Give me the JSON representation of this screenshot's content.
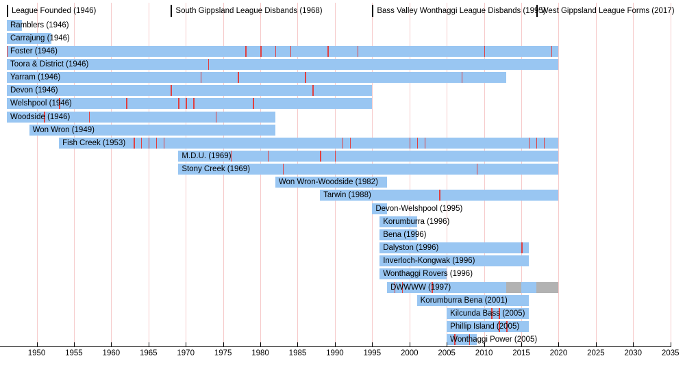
{
  "chart_data": {
    "type": "timeline",
    "unit": "year",
    "axis": {
      "min_year": 1946,
      "max_year": 2035,
      "tick_interval": 5,
      "tick_years": [
        1950,
        1955,
        1960,
        1965,
        1970,
        1975,
        1980,
        1985,
        1990,
        1995,
        2000,
        2005,
        2010,
        2015,
        2020,
        2025,
        2030,
        2035
      ]
    },
    "milestones": [
      {
        "label": "League Founded (1946)",
        "year": 1946
      },
      {
        "label": "South Gippsland League Disbands (1968)",
        "year": 1968
      },
      {
        "label": "Bass Valley Wonthaggi League Disbands (1995)",
        "year": 1995
      },
      {
        "label": "West Gippsland League Forms (2017)",
        "year": 2017
      }
    ],
    "clubs": [
      {
        "label": "Ramblers (1946)",
        "segments": [
          {
            "from": 1946,
            "to": 1948,
            "state": "active"
          }
        ],
        "premierships": []
      },
      {
        "label": "Carrajung (1946)",
        "segments": [
          {
            "from": 1946,
            "to": 1952,
            "state": "active"
          }
        ],
        "premierships": []
      },
      {
        "label": "Foster (1946)",
        "segments": [
          {
            "from": 1946,
            "to": 2020,
            "state": "active"
          }
        ],
        "premierships": [
          1946,
          1978,
          1980,
          1982,
          1984,
          1989,
          1993,
          2010,
          2019
        ]
      },
      {
        "label": "Toora & District (1946)",
        "segments": [
          {
            "from": 1946,
            "to": 2020,
            "state": "active"
          }
        ],
        "premierships": [
          1973
        ]
      },
      {
        "label": "Yarram (1946)",
        "segments": [
          {
            "from": 1946,
            "to": 2013,
            "state": "active"
          }
        ],
        "premierships": [
          1972,
          1977,
          1986,
          2007
        ]
      },
      {
        "label": "Devon (1946)",
        "segments": [
          {
            "from": 1946,
            "to": 1995,
            "state": "active"
          }
        ],
        "premierships": [
          1968,
          1987
        ]
      },
      {
        "label": "Welshpool (1946)",
        "segments": [
          {
            "from": 1946,
            "to": 1995,
            "state": "active"
          }
        ],
        "premierships": [
          1953,
          1962,
          1969,
          1970,
          1971,
          1979
        ]
      },
      {
        "label": "Woodside (1946)",
        "segments": [
          {
            "from": 1946,
            "to": 1982,
            "state": "active"
          }
        ],
        "premierships": [
          1951,
          1957,
          1974
        ]
      },
      {
        "label": "Won Wron (1949)",
        "segments": [
          {
            "from": 1949,
            "to": 1982,
            "state": "active"
          }
        ],
        "premierships": []
      },
      {
        "label": "Fish Creek (1953)",
        "segments": [
          {
            "from": 1953,
            "to": 2020,
            "state": "active"
          }
        ],
        "premierships": [
          1963,
          1964,
          1965,
          1966,
          1967,
          1991,
          1992,
          2000,
          2001,
          2002,
          2016,
          2017,
          2018
        ]
      },
      {
        "label": "M.D.U. (1969)",
        "segments": [
          {
            "from": 1969,
            "to": 2020,
            "state": "active"
          }
        ],
        "premierships": [
          1976,
          1981,
          1988,
          1990
        ]
      },
      {
        "label": "Stony Creek (1969)",
        "segments": [
          {
            "from": 1969,
            "to": 2020,
            "state": "active"
          }
        ],
        "premierships": [
          1983,
          2009
        ]
      },
      {
        "label": "Won Wron-Woodside (1982)",
        "segments": [
          {
            "from": 1982,
            "to": 1997,
            "state": "active"
          }
        ],
        "premierships": []
      },
      {
        "label": "Tarwin (1988)",
        "segments": [
          {
            "from": 1988,
            "to": 2020,
            "state": "active"
          }
        ],
        "premierships": [
          2004
        ]
      },
      {
        "label": "Devon-Welshpool (1995)",
        "segments": [
          {
            "from": 1995,
            "to": 1997,
            "state": "active"
          }
        ],
        "premierships": []
      },
      {
        "label": "Korumburra (1996)",
        "segments": [
          {
            "from": 1996,
            "to": 2001,
            "state": "active"
          }
        ],
        "premierships": []
      },
      {
        "label": "Bena (1996)",
        "segments": [
          {
            "from": 1996,
            "to": 2001,
            "state": "active"
          }
        ],
        "premierships": []
      },
      {
        "label": "Dalyston (1996)",
        "segments": [
          {
            "from": 1996,
            "to": 2016,
            "state": "active"
          }
        ],
        "premierships": [
          2015
        ]
      },
      {
        "label": "Inverloch-Kongwak (1996)",
        "segments": [
          {
            "from": 1996,
            "to": 2016,
            "state": "active"
          }
        ],
        "premierships": []
      },
      {
        "label": "Wonthaggi Rovers (1996)",
        "segments": [
          {
            "from": 1996,
            "to": 2005,
            "state": "active"
          }
        ],
        "premierships": []
      },
      {
        "label": "DWWWW (1997)",
        "segments": [
          {
            "from": 1997,
            "to": 2013,
            "state": "active"
          },
          {
            "from": 2013,
            "to": 2015,
            "state": "inactive"
          },
          {
            "from": 2015,
            "to": 2017,
            "state": "active"
          },
          {
            "from": 2017,
            "to": 2020,
            "state": "inactive"
          }
        ],
        "premierships": [
          1998,
          1999,
          2003
        ]
      },
      {
        "label": "Korumburra Bena (2001)",
        "segments": [
          {
            "from": 2001,
            "to": 2016,
            "state": "active"
          }
        ],
        "premierships": []
      },
      {
        "label": "Kilcunda Bass (2005)",
        "segments": [
          {
            "from": 2005,
            "to": 2016,
            "state": "active"
          }
        ],
        "premierships": [
          2011,
          2012
        ]
      },
      {
        "label": "Phillip Island (2005)",
        "segments": [
          {
            "from": 2005,
            "to": 2016,
            "state": "active"
          }
        ],
        "premierships": [
          2012,
          2013
        ]
      },
      {
        "label": "Wonthaggi Power (2005)",
        "segments": [
          {
            "from": 2005,
            "to": 2009,
            "state": "active"
          }
        ],
        "premierships": [
          2006,
          2008
        ]
      }
    ],
    "colors": {
      "active_bar": "#99c6f2",
      "inactive_bar": "#b2b2b2",
      "premiership_tick": "#e04040",
      "gridline": "#f6caca",
      "axis_line": "#000000",
      "milestone_marker": "#000000",
      "text": "#000000"
    },
    "legend_position": "none",
    "grid": true
  }
}
